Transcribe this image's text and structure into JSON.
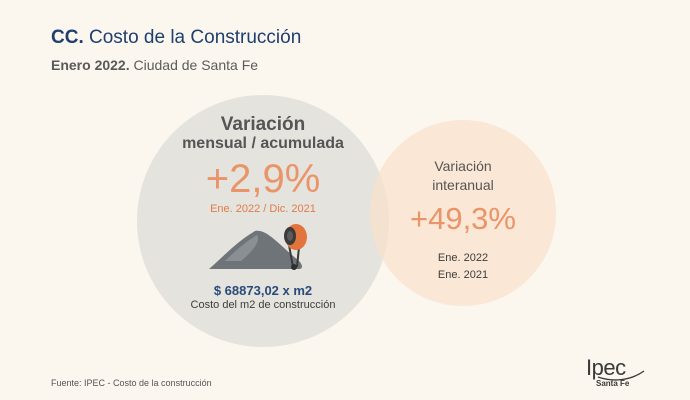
{
  "header": {
    "title_prefix": "CC.",
    "title_text": "Costo de la Construcción",
    "subtitle_prefix": "Enero 2022.",
    "subtitle_text": "Ciudad de Santa Fe"
  },
  "left_panel": {
    "label_line1": "Variación",
    "label_line2": "mensual / acumulada",
    "value": "+2,9%",
    "period": "Ene. 2022 / Dic. 2021",
    "price": "$ 68873,02 x m2",
    "price_description": "Costo del m2 de construcción",
    "illustration": "cement-mixer-icon"
  },
  "right_panel": {
    "label_line1": "Variación",
    "label_line2": "interanual",
    "value": "+49,3%",
    "period_line1": "Ene. 2022",
    "period_line2": "Ene. 2021"
  },
  "footer": {
    "source": "Fuente: IPEC - Costo de la construcción",
    "logo_main": "Ipec",
    "logo_sub": "Santa Fe"
  },
  "colors": {
    "background": "#fbf6ee",
    "title": "#1f3f6f",
    "accent": "#ea9469",
    "left_circle": "#e2e1db",
    "right_circle": "#f9e2cc"
  }
}
